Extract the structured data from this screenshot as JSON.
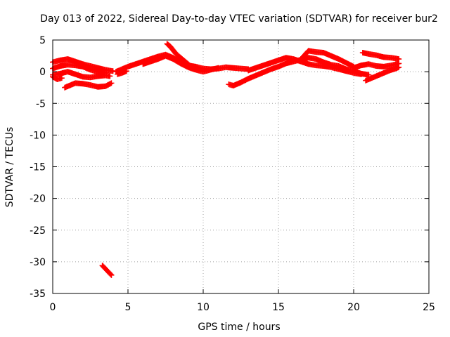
{
  "chart_data": {
    "type": "scatter",
    "title": "Day 013 of 2022, Sidereal Day-to-day VTEC variation (SDTVAR) for receiver bur2",
    "xlabel": "GPS time / hours",
    "ylabel": "SDTVAR / TECUs",
    "xlim": [
      0,
      25
    ],
    "ylim": [
      -35,
      5
    ],
    "xticks": [
      0,
      5,
      10,
      15,
      20,
      25
    ],
    "yticks": [
      5,
      0,
      -5,
      -10,
      -15,
      -20,
      -25,
      -30,
      -35
    ],
    "xtick_labels": [
      "0",
      "5",
      "10",
      "15",
      "20",
      "25"
    ],
    "ytick_labels": [
      "5",
      "0",
      "-5",
      "-10",
      "-15",
      "-20",
      "-25",
      "-30",
      "-35"
    ],
    "grid": true,
    "marker": "+",
    "color": "#ff0000",
    "series": [
      {
        "name": "track-a",
        "x": [
          0.0,
          0.5,
          1.0,
          1.5,
          2.0,
          2.5,
          3.0,
          3.5,
          4.0
        ],
        "y": [
          1.5,
          1.8,
          2.0,
          1.6,
          1.2,
          0.9,
          0.6,
          0.3,
          0.1
        ]
      },
      {
        "name": "track-b",
        "x": [
          0.0,
          0.5,
          1.0,
          1.5,
          2.0,
          2.5,
          3.0,
          3.5
        ],
        "y": [
          0.5,
          0.9,
          1.1,
          1.0,
          0.8,
          0.3,
          0.0,
          -0.2
        ]
      },
      {
        "name": "track-c",
        "x": [
          0.0,
          0.5,
          1.0,
          1.5,
          2.0,
          2.5,
          3.0,
          3.5,
          3.8
        ],
        "y": [
          -0.5,
          -0.3,
          0.0,
          -0.4,
          -0.8,
          -0.9,
          -0.7,
          -0.6,
          -0.7
        ]
      },
      {
        "name": "track-d",
        "x": [
          0.0,
          0.3,
          0.6
        ],
        "y": [
          -0.8,
          -1.2,
          -1.0
        ]
      },
      {
        "name": "track-e",
        "x": [
          0.8,
          1.5,
          2.0,
          2.5,
          3.0,
          3.5,
          3.9
        ],
        "y": [
          -2.5,
          -1.8,
          -1.9,
          -2.1,
          -2.4,
          -2.3,
          -1.8
        ]
      },
      {
        "name": "track-f",
        "x": [
          4.2,
          4.6,
          5.0,
          5.5,
          6.0,
          6.5,
          7.0,
          7.5,
          8.0,
          8.5,
          9.0,
          9.5,
          10.0,
          10.5,
          11.0,
          11.5,
          12.0,
          12.5,
          13.0
        ],
        "y": [
          0.0,
          0.4,
          0.8,
          1.2,
          1.6,
          2.0,
          2.4,
          2.7,
          2.2,
          1.5,
          1.0,
          0.8,
          0.5,
          0.4,
          0.5,
          0.7,
          0.6,
          0.5,
          0.4
        ]
      },
      {
        "name": "track-g",
        "x": [
          6.0,
          6.5,
          7.0,
          7.5,
          8.0,
          8.5,
          9.0,
          9.5,
          10.0,
          10.5,
          11.0
        ],
        "y": [
          1.2,
          1.6,
          2.0,
          2.5,
          2.0,
          1.3,
          0.7,
          0.3,
          0.0,
          0.3,
          0.6
        ]
      },
      {
        "name": "track-h",
        "x": [
          7.6,
          7.8,
          8.0,
          8.2,
          8.5,
          8.8,
          9.1,
          9.4
        ],
        "y": [
          4.4,
          4.0,
          3.4,
          2.8,
          2.2,
          1.6,
          1.0,
          0.5
        ]
      },
      {
        "name": "track-i",
        "x": [
          4.3,
          4.6,
          4.9
        ],
        "y": [
          -0.4,
          -0.2,
          0.1
        ]
      },
      {
        "name": "track-j",
        "x": [
          11.7,
          12.0,
          12.5,
          13.0,
          13.5,
          14.0,
          14.5,
          15.0,
          15.5,
          16.0,
          16.5,
          17.0,
          17.5,
          18.0,
          18.5,
          19.0,
          19.5,
          20.0,
          20.5,
          21.0
        ],
        "y": [
          -2.0,
          -2.2,
          -1.7,
          -1.1,
          -0.6,
          -0.1,
          0.4,
          0.8,
          1.3,
          1.6,
          1.9,
          2.2,
          2.0,
          1.5,
          1.1,
          0.9,
          0.4,
          0.1,
          -0.3,
          -0.5
        ]
      },
      {
        "name": "track-k",
        "x": [
          13.0,
          13.5,
          14.0,
          14.5,
          15.0,
          15.5,
          16.0,
          16.5,
          17.0,
          17.5,
          18.0,
          18.5,
          19.0,
          19.5,
          20.0,
          20.5
        ],
        "y": [
          0.2,
          0.6,
          1.0,
          1.4,
          1.8,
          2.2,
          2.0,
          1.6,
          1.2,
          1.0,
          0.9,
          0.7,
          0.4,
          0.1,
          -0.2,
          -0.4
        ]
      },
      {
        "name": "track-l",
        "x": [
          16.5,
          17.0,
          17.5,
          18.0,
          18.5,
          19.0,
          19.5,
          20.0
        ],
        "y": [
          2.0,
          3.3,
          3.1,
          3.0,
          2.5,
          2.0,
          1.4,
          0.8
        ]
      },
      {
        "name": "track-m",
        "x": [
          20.0,
          20.5,
          21.0,
          21.5,
          22.0,
          22.5,
          23.0
        ],
        "y": [
          0.6,
          1.0,
          1.2,
          0.9,
          0.8,
          1.0,
          1.3
        ]
      },
      {
        "name": "track-n",
        "x": [
          20.6,
          21.0,
          21.5,
          22.0,
          22.5,
          23.0
        ],
        "y": [
          3.0,
          2.8,
          2.6,
          2.3,
          2.2,
          2.0
        ]
      },
      {
        "name": "track-o",
        "x": [
          20.8,
          21.2,
          21.6,
          22.0,
          22.4,
          22.8,
          23.0
        ],
        "y": [
          -1.4,
          -1.0,
          -0.6,
          -0.2,
          0.2,
          0.5,
          0.7
        ]
      },
      {
        "name": "track-p",
        "x": [
          3.3,
          3.5,
          3.7,
          3.9
        ],
        "y": [
          -30.6,
          -31.1,
          -31.6,
          -32.1
        ]
      }
    ]
  }
}
